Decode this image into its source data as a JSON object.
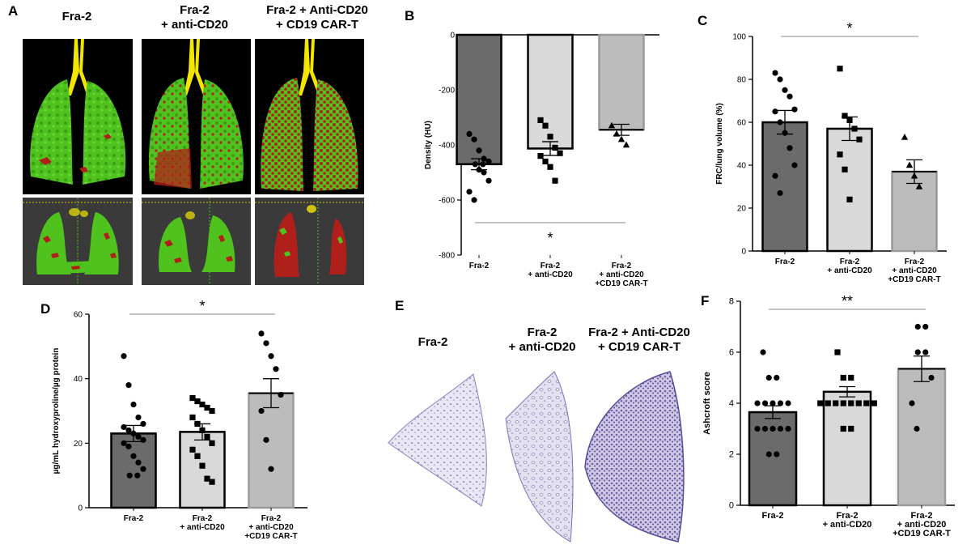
{
  "panel_a": {
    "letter": "A",
    "headers": [
      "Fra-2",
      "Fra-2\n+ anti-CD20",
      "Fra-2 + Anti-CD20\n+ CD19 CAR-T"
    ]
  },
  "panel_e": {
    "letter": "E",
    "headers": [
      "Fra-2",
      "Fra-2\n+ anti-CD20",
      "Fra-2 + Anti-CD20\n+ CD19 CAR-T"
    ]
  },
  "colors": {
    "bar1": "#6b6b6b",
    "bar2": "#d9d9d9",
    "bar3": "#bcbcbc",
    "lung_green": "#4fc21e",
    "lung_red": "#b0201a",
    "trachea": "#f2e600",
    "histology": "#6f5fa6"
  },
  "chart_data": [
    {
      "id": "B",
      "letter": "B",
      "type": "bar",
      "categories": [
        "Fra-2",
        "Fra-2\n+ anti-CD20",
        "Fra-2\n+ anti-CD20\n+CD19 CAR-T"
      ],
      "values": [
        -470,
        -413,
        -345
      ],
      "errors": [
        20,
        25,
        20
      ],
      "points": [
        [
          -360,
          -380,
          -420,
          -450,
          -460,
          -470,
          -470,
          -490,
          -500,
          -530,
          -570,
          -600
        ],
        [
          -310,
          -330,
          -370,
          -410,
          -430,
          -440,
          -460,
          -480,
          -530
        ],
        [
          -330,
          -360,
          -380,
          -400
        ]
      ],
      "markers": [
        "circle",
        "square",
        "triangle"
      ],
      "ylabel": "Density (HU)",
      "ylim": [
        -800,
        0
      ],
      "yticks": [
        0,
        -200,
        -400,
        -600,
        -800
      ],
      "yticklabels": [
        "0",
        "-200",
        "-400",
        "-600",
        "-800"
      ],
      "orientation": "down",
      "significance": {
        "label": "*",
        "from": 0,
        "to": 2,
        "position": "below"
      }
    },
    {
      "id": "C",
      "letter": "C",
      "type": "bar",
      "categories": [
        "Fra-2",
        "Fra-2\n+ anti-CD20",
        "Fra-2\n+ anti-CD20\n+CD19 CAR-T"
      ],
      "values": [
        60,
        57,
        37
      ],
      "errors": [
        5.5,
        5.5,
        5.5
      ],
      "points": [
        [
          83,
          80,
          75,
          72,
          66,
          65,
          60,
          55,
          48,
          40,
          35,
          27
        ],
        [
          85,
          63,
          61,
          57,
          52,
          45,
          38,
          24
        ],
        [
          53,
          40,
          35,
          30
        ]
      ],
      "markers": [
        "circle",
        "square",
        "triangle"
      ],
      "ylabel": "FRC/lung volume (%)",
      "ylim": [
        0,
        100
      ],
      "yticks": [
        0,
        20,
        40,
        60,
        80,
        100
      ],
      "yticklabels": [
        "0",
        "20",
        "40",
        "60",
        "80",
        "100"
      ],
      "orientation": "up",
      "significance": {
        "label": "*",
        "from": 0,
        "to": 2,
        "position": "above"
      }
    },
    {
      "id": "D",
      "letter": "D",
      "type": "bar",
      "categories": [
        "Fra-2",
        "Fra-2\n+ anti-CD20",
        "Fra-2\n+ anti-CD20\n+CD19 CAR-T"
      ],
      "values": [
        23,
        23.5,
        35.5
      ],
      "errors": [
        2.5,
        2.5,
        4.5
      ],
      "points": [
        [
          47,
          38,
          32,
          28,
          26,
          25,
          24,
          23,
          22,
          21,
          20,
          19,
          16,
          14,
          12,
          10,
          10
        ],
        [
          34,
          33,
          32,
          31,
          30,
          28,
          26,
          24,
          22,
          20,
          18,
          16,
          13,
          9,
          8
        ],
        [
          54,
          51,
          47,
          43,
          35,
          30,
          21,
          12
        ]
      ],
      "markers": [
        "circle",
        "square",
        "circle"
      ],
      "ylabel": "µg/mL hydroxyproline/µg protein",
      "ylim": [
        0,
        60
      ],
      "yticks": [
        0,
        20,
        40,
        60
      ],
      "yticklabels": [
        "0",
        "20",
        "40",
        "60"
      ],
      "orientation": "up",
      "significance": {
        "label": "*",
        "from": 0,
        "to": 2,
        "position": "above"
      }
    },
    {
      "id": "F",
      "letter": "F",
      "type": "bar",
      "categories": [
        "Fra-2",
        "Fra-2\n+ anti-CD20",
        "Fra-2\n+ anti-CD20\n+CD19 CAR-T"
      ],
      "values": [
        3.65,
        4.45,
        5.35
      ],
      "errors": [
        0.25,
        0.2,
        0.5
      ],
      "points": [
        [
          6,
          5,
          5,
          4,
          4,
          4,
          4,
          4,
          3,
          3,
          3,
          3,
          3,
          2,
          2
        ],
        [
          6,
          5,
          5,
          4,
          4,
          4,
          4,
          4,
          4,
          4,
          4,
          3,
          3
        ],
        [
          7,
          7,
          6,
          6,
          5,
          4,
          3
        ]
      ],
      "markers": [
        "circle",
        "square",
        "circle"
      ],
      "ylabel": "Ashcroft score",
      "ylim": [
        0,
        8
      ],
      "yticks": [
        0,
        2,
        4,
        6,
        8
      ],
      "yticklabels": [
        "0",
        "2",
        "4",
        "6",
        "8"
      ],
      "orientation": "up",
      "significance": {
        "label": "**",
        "from": 0,
        "to": 2,
        "position": "above"
      }
    }
  ]
}
